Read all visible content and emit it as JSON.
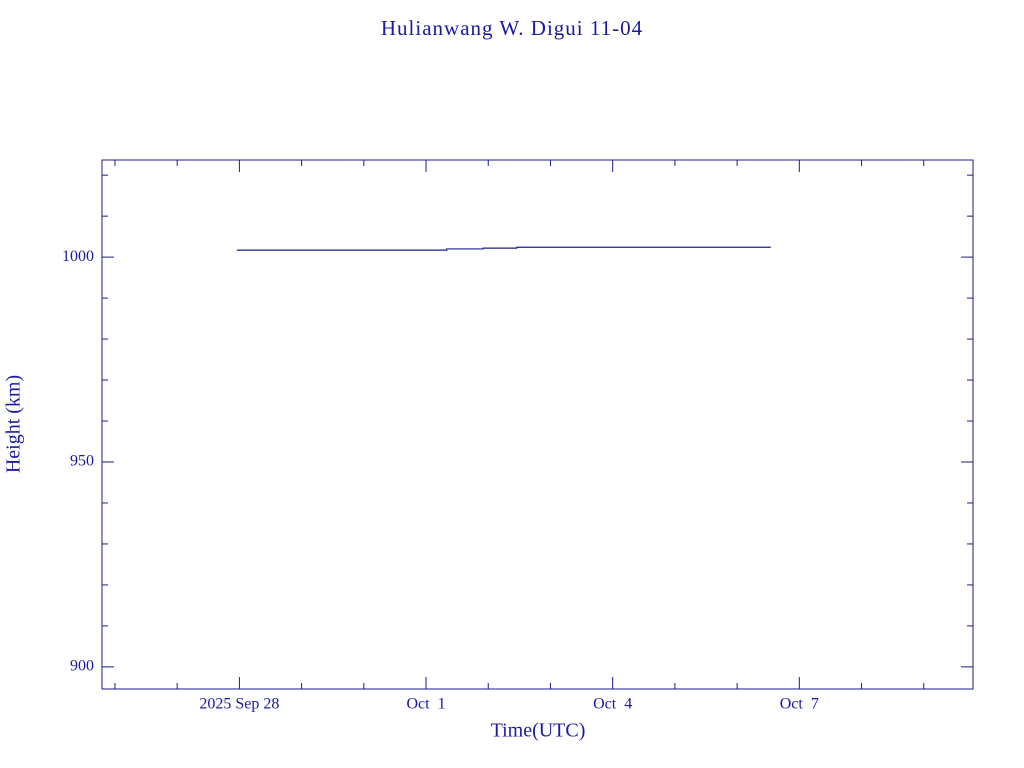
{
  "chart_data": {
    "type": "line",
    "title": "Hulianwang W. Digui 11-04",
    "x_label": "Time(UTC)",
    "y_label": "Height (km)",
    "color": "#1c1c8c",
    "xlim": [
      "2025-09-25T19:00",
      "2025-10-09T19:00"
    ],
    "xticks": [
      {
        "value": "2025-09-28T00:00",
        "label": "2025 Sep 28"
      },
      {
        "value": "2025-10-01T00:00",
        "label": "Oct  1"
      },
      {
        "value": "2025-10-04T00:00",
        "label": "Oct  4"
      },
      {
        "value": "2025-10-07T00:00",
        "label": "Oct  7"
      }
    ],
    "xminorticks": [
      "2025-09-26T00:00",
      "2025-09-27T00:00",
      "2025-09-29T00:00",
      "2025-09-30T00:00",
      "2025-10-02T00:00",
      "2025-10-03T00:00",
      "2025-10-05T00:00",
      "2025-10-06T00:00",
      "2025-10-08T00:00",
      "2025-10-09T00:00"
    ],
    "ylim": [
      894.6,
      1023.7
    ],
    "yticks": [
      900,
      950,
      1000
    ],
    "yminorticks": [
      910,
      920,
      930,
      940,
      960,
      970,
      980,
      990,
      1010,
      1020
    ],
    "series": [
      {
        "name": "Height",
        "x": [
          "2025-09-27T23:00",
          "2025-10-01T08:00",
          "2025-10-01T08:00",
          "2025-10-01T22:00",
          "2025-10-01T22:00",
          "2025-10-02T11:00",
          "2025-10-02T11:00",
          "2025-10-06T13:00"
        ],
        "values": [
          1001.7,
          1001.7,
          1002.0,
          1002.0,
          1002.2,
          1002.2,
          1002.4,
          1002.4
        ]
      }
    ]
  }
}
